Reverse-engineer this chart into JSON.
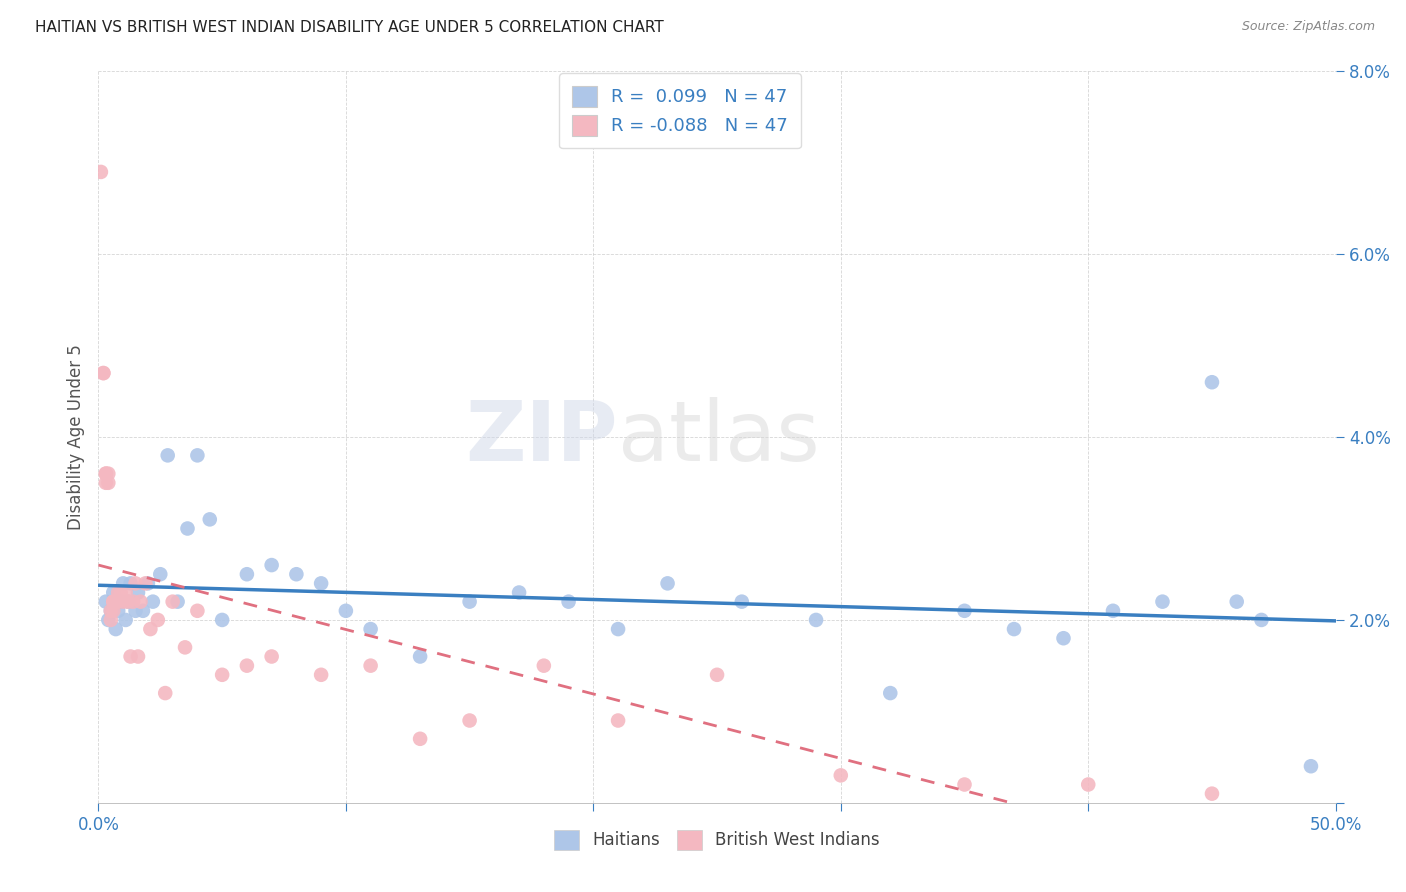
{
  "title": "HAITIAN VS BRITISH WEST INDIAN DISABILITY AGE UNDER 5 CORRELATION CHART",
  "source": "Source: ZipAtlas.com",
  "ylabel": "Disability Age Under 5",
  "xlim": [
    0.0,
    0.5
  ],
  "ylim": [
    0.0,
    0.08
  ],
  "xtick_vals": [
    0.0,
    0.1,
    0.2,
    0.3,
    0.4,
    0.5
  ],
  "ytick_vals": [
    0.0,
    0.02,
    0.04,
    0.06,
    0.08
  ],
  "haitian_color": "#aec6e8",
  "bwi_color": "#f4b8c1",
  "haitian_line_color": "#3a7fc1",
  "bwi_line_color": "#e07080",
  "haitian_R": 0.099,
  "bwi_R": -0.088,
  "N": 47,
  "legend_label_haitian": "Haitians",
  "legend_label_bwi": "British West Indians",
  "watermark_zip": "ZIP",
  "watermark_atlas": "atlas",
  "haitian_x": [
    0.003,
    0.004,
    0.005,
    0.006,
    0.007,
    0.008,
    0.009,
    0.01,
    0.011,
    0.012,
    0.013,
    0.015,
    0.016,
    0.018,
    0.02,
    0.022,
    0.025,
    0.028,
    0.032,
    0.036,
    0.04,
    0.045,
    0.05,
    0.06,
    0.07,
    0.08,
    0.09,
    0.1,
    0.11,
    0.13,
    0.15,
    0.17,
    0.19,
    0.21,
    0.23,
    0.26,
    0.29,
    0.32,
    0.35,
    0.37,
    0.39,
    0.41,
    0.43,
    0.45,
    0.46,
    0.47,
    0.49
  ],
  "haitian_y": [
    0.022,
    0.02,
    0.021,
    0.023,
    0.019,
    0.021,
    0.022,
    0.024,
    0.02,
    0.022,
    0.024,
    0.021,
    0.023,
    0.021,
    0.024,
    0.022,
    0.025,
    0.038,
    0.022,
    0.03,
    0.038,
    0.031,
    0.02,
    0.025,
    0.026,
    0.025,
    0.024,
    0.021,
    0.019,
    0.016,
    0.022,
    0.023,
    0.022,
    0.019,
    0.024,
    0.022,
    0.02,
    0.012,
    0.021,
    0.019,
    0.018,
    0.021,
    0.022,
    0.046,
    0.022,
    0.02,
    0.004
  ],
  "bwi_x": [
    0.001,
    0.002,
    0.002,
    0.003,
    0.003,
    0.003,
    0.004,
    0.004,
    0.005,
    0.005,
    0.006,
    0.006,
    0.006,
    0.007,
    0.007,
    0.008,
    0.008,
    0.009,
    0.01,
    0.011,
    0.012,
    0.013,
    0.014,
    0.015,
    0.016,
    0.017,
    0.019,
    0.021,
    0.024,
    0.027,
    0.03,
    0.035,
    0.04,
    0.05,
    0.06,
    0.07,
    0.09,
    0.11,
    0.13,
    0.15,
    0.18,
    0.21,
    0.25,
    0.3,
    0.35,
    0.4,
    0.45
  ],
  "bwi_y": [
    0.069,
    0.047,
    0.047,
    0.036,
    0.036,
    0.035,
    0.036,
    0.035,
    0.021,
    0.02,
    0.022,
    0.022,
    0.021,
    0.022,
    0.022,
    0.023,
    0.022,
    0.023,
    0.022,
    0.023,
    0.022,
    0.016,
    0.022,
    0.024,
    0.016,
    0.022,
    0.024,
    0.019,
    0.02,
    0.012,
    0.022,
    0.017,
    0.021,
    0.014,
    0.015,
    0.016,
    0.014,
    0.015,
    0.007,
    0.009,
    0.015,
    0.009,
    0.014,
    0.003,
    0.002,
    0.002,
    0.001
  ]
}
